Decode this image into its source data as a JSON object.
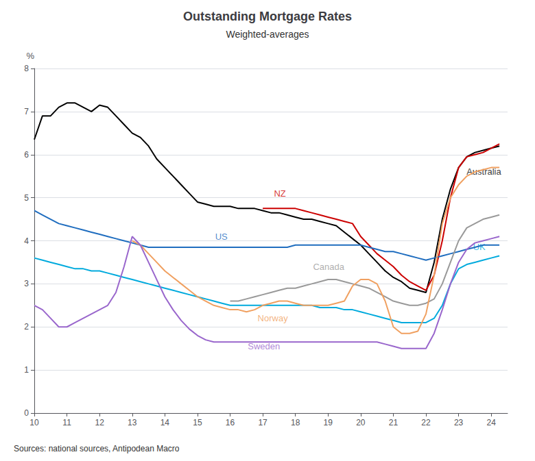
{
  "chart_data": {
    "type": "line",
    "title": "Outstanding Mortgage Rates",
    "subtitle": "Weighted-averages",
    "ylabel": "%",
    "source": "Sources: national sources, Antipodean Macro",
    "xlim": [
      10,
      24.5
    ],
    "ylim": [
      0,
      8
    ],
    "xticks": [
      10,
      11,
      12,
      13,
      14,
      15,
      16,
      17,
      18,
      19,
      20,
      21,
      22,
      23,
      24
    ],
    "yticks": [
      0,
      1,
      2,
      3,
      4,
      5,
      6,
      7,
      8
    ],
    "grid": true,
    "series": [
      {
        "name": "Australia",
        "color": "#000000",
        "x": [
          10,
          10.25,
          10.5,
          10.75,
          11,
          11.25,
          11.5,
          11.75,
          12,
          12.25,
          12.5,
          12.75,
          13,
          13.25,
          13.5,
          13.75,
          14,
          14.25,
          14.5,
          14.75,
          15,
          15.25,
          15.5,
          15.75,
          16,
          16.25,
          16.5,
          16.75,
          17,
          17.25,
          17.5,
          17.75,
          18,
          18.25,
          18.5,
          18.75,
          19,
          19.25,
          19.5,
          19.75,
          20,
          20.25,
          20.5,
          20.75,
          21,
          21.25,
          21.5,
          21.75,
          22,
          22.25,
          22.5,
          22.75,
          23,
          23.25,
          23.5,
          23.75,
          24,
          24.25
        ],
        "values": [
          6.35,
          6.9,
          6.9,
          7.1,
          7.2,
          7.2,
          7.1,
          7.0,
          7.15,
          7.1,
          6.9,
          6.7,
          6.5,
          6.4,
          6.2,
          5.9,
          5.7,
          5.5,
          5.3,
          5.1,
          4.9,
          4.85,
          4.8,
          4.8,
          4.8,
          4.75,
          4.75,
          4.75,
          4.7,
          4.65,
          4.65,
          4.6,
          4.55,
          4.5,
          4.5,
          4.45,
          4.4,
          4.35,
          4.2,
          4.05,
          3.9,
          3.7,
          3.5,
          3.3,
          3.15,
          3.05,
          2.9,
          2.85,
          2.8,
          3.5,
          4.5,
          5.2,
          5.7,
          5.95,
          6.05,
          6.1,
          6.15,
          6.2
        ]
      },
      {
        "name": "NZ",
        "color": "#cc0000",
        "x": [
          17,
          17.25,
          17.5,
          17.75,
          18,
          18.25,
          18.5,
          18.75,
          19,
          19.25,
          19.5,
          19.75,
          20,
          20.25,
          20.5,
          20.75,
          21,
          21.25,
          21.5,
          21.75,
          22,
          22.25,
          22.5,
          22.75,
          23,
          23.25,
          23.5,
          23.75,
          24,
          24.25
        ],
        "values": [
          4.75,
          4.75,
          4.75,
          4.75,
          4.75,
          4.7,
          4.65,
          4.6,
          4.55,
          4.5,
          4.45,
          4.4,
          4.1,
          3.9,
          3.7,
          3.55,
          3.4,
          3.2,
          3.05,
          2.95,
          2.85,
          3.2,
          4.0,
          5.0,
          5.7,
          5.95,
          6.0,
          6.05,
          6.15,
          6.25
        ]
      },
      {
        "name": "US",
        "color": "#1f6dbf",
        "x": [
          10,
          10.25,
          10.5,
          10.75,
          11,
          11.25,
          11.5,
          11.75,
          12,
          12.25,
          12.5,
          12.75,
          13,
          13.25,
          13.5,
          13.75,
          14,
          14.25,
          14.5,
          14.75,
          15,
          15.25,
          15.5,
          15.75,
          16,
          16.25,
          16.5,
          16.75,
          17,
          17.25,
          17.5,
          17.75,
          18,
          18.25,
          18.5,
          18.75,
          19,
          19.25,
          19.5,
          19.75,
          20,
          20.25,
          20.5,
          20.75,
          21,
          21.25,
          21.5,
          21.75,
          22,
          22.25,
          22.5,
          22.75,
          23,
          23.25,
          23.5,
          23.75,
          24,
          24.25
        ],
        "values": [
          4.7,
          4.6,
          4.5,
          4.4,
          4.35,
          4.3,
          4.25,
          4.2,
          4.15,
          4.1,
          4.05,
          4.0,
          3.95,
          3.9,
          3.85,
          3.85,
          3.85,
          3.85,
          3.85,
          3.85,
          3.85,
          3.85,
          3.85,
          3.85,
          3.85,
          3.85,
          3.85,
          3.85,
          3.85,
          3.85,
          3.85,
          3.85,
          3.9,
          3.9,
          3.9,
          3.9,
          3.9,
          3.9,
          3.9,
          3.9,
          3.9,
          3.85,
          3.8,
          3.75,
          3.75,
          3.7,
          3.65,
          3.6,
          3.55,
          3.6,
          3.65,
          3.7,
          3.75,
          3.8,
          3.85,
          3.9,
          3.9,
          3.9
        ]
      },
      {
        "name": "UK",
        "color": "#00aadd",
        "x": [
          10,
          10.25,
          10.5,
          10.75,
          11,
          11.25,
          11.5,
          11.75,
          12,
          12.25,
          12.5,
          12.75,
          13,
          13.25,
          13.5,
          13.75,
          14,
          14.25,
          14.5,
          14.75,
          15,
          15.25,
          15.5,
          15.75,
          16,
          16.25,
          16.5,
          16.75,
          17,
          17.25,
          17.5,
          17.75,
          18,
          18.25,
          18.5,
          18.75,
          19,
          19.25,
          19.5,
          19.75,
          20,
          20.25,
          20.5,
          20.75,
          21,
          21.25,
          21.5,
          21.75,
          22,
          22.25,
          22.5,
          22.75,
          23,
          23.25,
          23.5,
          23.75,
          24,
          24.25
        ],
        "values": [
          3.6,
          3.55,
          3.5,
          3.45,
          3.4,
          3.35,
          3.35,
          3.3,
          3.3,
          3.25,
          3.2,
          3.15,
          3.1,
          3.05,
          3.0,
          2.95,
          2.9,
          2.85,
          2.8,
          2.75,
          2.7,
          2.65,
          2.6,
          2.55,
          2.5,
          2.5,
          2.5,
          2.5,
          2.5,
          2.5,
          2.5,
          2.5,
          2.5,
          2.5,
          2.5,
          2.45,
          2.45,
          2.45,
          2.4,
          2.4,
          2.35,
          2.3,
          2.25,
          2.2,
          2.15,
          2.1,
          2.1,
          2.1,
          2.1,
          2.2,
          2.5,
          3.0,
          3.35,
          3.45,
          3.5,
          3.55,
          3.6,
          3.65
        ]
      },
      {
        "name": "Canada",
        "color": "#999999",
        "x": [
          16,
          16.25,
          16.5,
          16.75,
          17,
          17.25,
          17.5,
          17.75,
          18,
          18.25,
          18.5,
          18.75,
          19,
          19.25,
          19.5,
          19.75,
          20,
          20.25,
          20.5,
          20.75,
          21,
          21.25,
          21.5,
          21.75,
          22,
          22.25,
          22.5,
          22.75,
          23,
          23.25,
          23.5,
          23.75,
          24,
          24.25
        ],
        "values": [
          2.6,
          2.6,
          2.65,
          2.7,
          2.75,
          2.8,
          2.85,
          2.9,
          2.9,
          2.95,
          3.0,
          3.05,
          3.1,
          3.1,
          3.05,
          3.0,
          2.95,
          2.9,
          2.8,
          2.7,
          2.6,
          2.55,
          2.5,
          2.5,
          2.55,
          2.65,
          3.0,
          3.5,
          4.0,
          4.3,
          4.4,
          4.5,
          4.55,
          4.6
        ]
      },
      {
        "name": "Norway",
        "color": "#f0a060",
        "x": [
          13,
          13.25,
          13.5,
          13.75,
          14,
          14.25,
          14.5,
          14.75,
          15,
          15.25,
          15.5,
          15.75,
          16,
          16.25,
          16.5,
          16.75,
          17,
          17.25,
          17.5,
          17.75,
          18,
          18.25,
          18.5,
          18.75,
          19,
          19.25,
          19.5,
          19.75,
          20,
          20.25,
          20.5,
          20.75,
          21,
          21.25,
          21.5,
          21.75,
          22,
          22.25,
          22.5,
          22.75,
          23,
          23.25,
          23.5,
          23.75,
          24,
          24.25
        ],
        "values": [
          4.0,
          3.9,
          3.7,
          3.5,
          3.3,
          3.15,
          3.0,
          2.85,
          2.7,
          2.6,
          2.5,
          2.45,
          2.4,
          2.4,
          2.35,
          2.4,
          2.5,
          2.55,
          2.6,
          2.6,
          2.55,
          2.5,
          2.5,
          2.5,
          2.5,
          2.55,
          2.6,
          2.95,
          3.1,
          3.1,
          3.0,
          2.6,
          2.0,
          1.85,
          1.85,
          1.9,
          2.3,
          3.2,
          4.4,
          5.0,
          5.3,
          5.5,
          5.6,
          5.65,
          5.7,
          5.7
        ]
      },
      {
        "name": "Sweden",
        "color": "#9966cc",
        "x": [
          10,
          10.25,
          10.5,
          10.75,
          11,
          11.25,
          11.5,
          11.75,
          12,
          12.25,
          12.5,
          12.75,
          13,
          13.25,
          13.5,
          13.75,
          14,
          14.25,
          14.5,
          14.75,
          15,
          15.25,
          15.5,
          15.75,
          16,
          16.25,
          16.5,
          16.75,
          17,
          17.25,
          17.5,
          17.75,
          18,
          18.25,
          18.5,
          18.75,
          19,
          19.25,
          19.5,
          19.75,
          20,
          20.25,
          20.5,
          20.75,
          21,
          21.25,
          21.5,
          21.75,
          22,
          22.25,
          22.5,
          22.75,
          23,
          23.25,
          23.5,
          23.75,
          24,
          24.25
        ],
        "values": [
          2.5,
          2.4,
          2.2,
          2.0,
          2.0,
          2.1,
          2.2,
          2.3,
          2.4,
          2.5,
          2.8,
          3.4,
          4.1,
          3.9,
          3.5,
          3.1,
          2.7,
          2.4,
          2.15,
          1.95,
          1.8,
          1.7,
          1.65,
          1.65,
          1.65,
          1.65,
          1.65,
          1.65,
          1.65,
          1.65,
          1.65,
          1.65,
          1.65,
          1.65,
          1.65,
          1.65,
          1.65,
          1.65,
          1.65,
          1.65,
          1.65,
          1.65,
          1.65,
          1.6,
          1.55,
          1.5,
          1.5,
          1.5,
          1.5,
          1.85,
          2.4,
          3.0,
          3.5,
          3.8,
          3.95,
          4.0,
          4.05,
          4.1
        ]
      }
    ],
    "annotations": [
      {
        "text": "Australia",
        "x": 23.2,
        "y": 5.6,
        "color": "#000000"
      },
      {
        "text": "NZ",
        "x": 17.3,
        "y": 5.1,
        "color": "#cc0000"
      },
      {
        "text": "US",
        "x": 15.5,
        "y": 4.1,
        "color": "#1f6dbf"
      },
      {
        "text": "UK",
        "x": 23.4,
        "y": 3.85,
        "color": "#00aadd"
      },
      {
        "text": "Canada",
        "x": 18.5,
        "y": 3.4,
        "color": "#999999"
      },
      {
        "text": "Norway",
        "x": 16.8,
        "y": 2.2,
        "color": "#f0a060"
      },
      {
        "text": "Sweden",
        "x": 16.5,
        "y": 1.55,
        "color": "#9966cc"
      }
    ]
  }
}
